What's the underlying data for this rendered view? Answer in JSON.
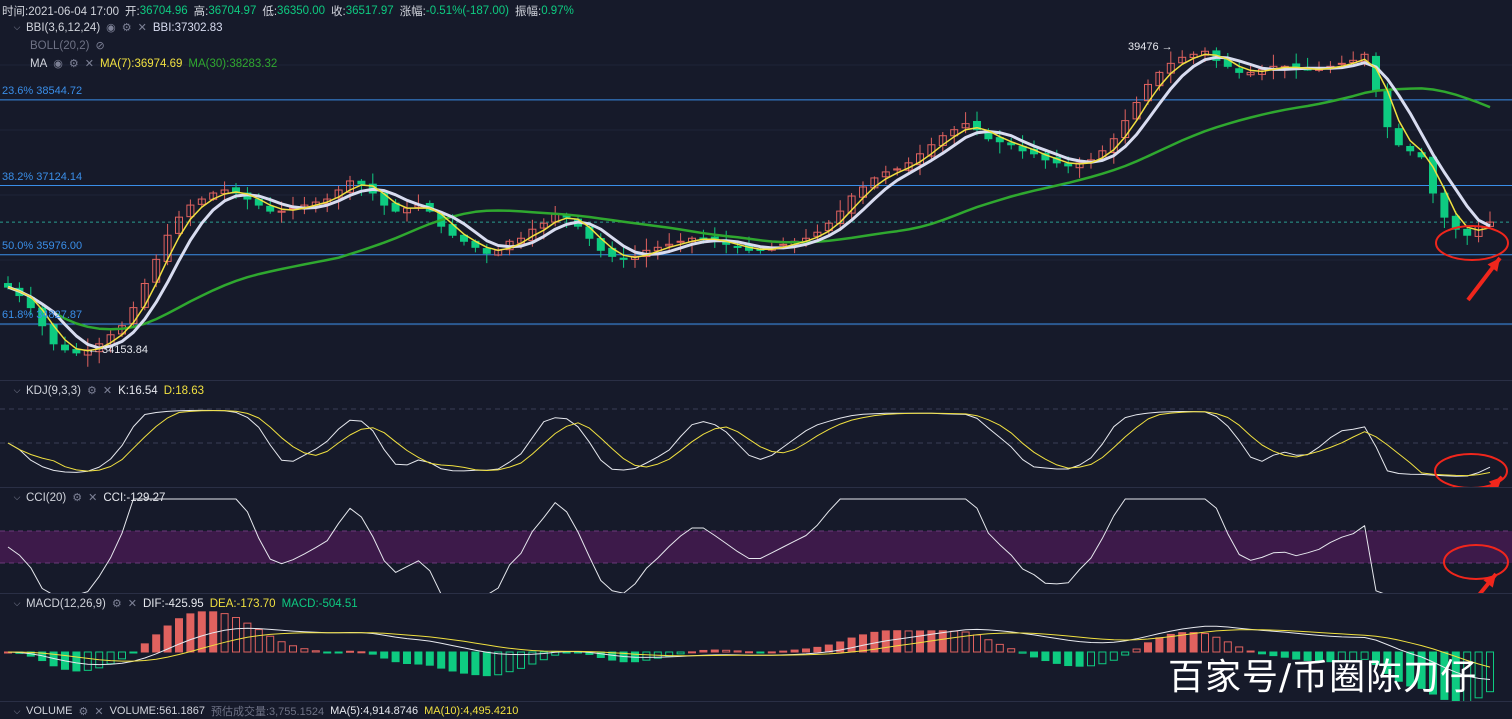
{
  "header": {
    "time": "时间:2021-06-04 17:00",
    "open_label": "开:",
    "open": "36704.96",
    "high_label": "高:",
    "high": "36704.97",
    "low_label": "低:",
    "low": "36350.00",
    "close_label": "收:",
    "close": "36517.97",
    "change_label": "涨幅:",
    "change": "-0.51%(-187.00)",
    "amp_label": "振幅:",
    "amp": "0.97%"
  },
  "indicators": {
    "bbi_name": "BBI(3,6,12,24)",
    "bbi_value": "BBI:37302.83",
    "boll_name": "BOLL(20,2)",
    "ma_name": "MA",
    "ma7": "MA(7):36974.69",
    "ma30": "MA(30):38283.32"
  },
  "fib_levels": [
    {
      "label": "23.6% 38544.72",
      "price": 38544.72
    },
    {
      "label": "38.2% 37124.14",
      "price": 37124.14
    },
    {
      "label": "50.0% 35976.00",
      "price": 35976.0
    },
    {
      "label": "61.8% 34827.87",
      "price": 34827.87
    }
  ],
  "annotations": {
    "high": "39476 →",
    "low": "← 34153.84"
  },
  "kdj": {
    "name": "KDJ(9,3,3)",
    "k": "K:16.54",
    "d": "D:18.63"
  },
  "cci": {
    "name": "CCI(20)",
    "value": "CCI:-129.27"
  },
  "macd": {
    "name": "MACD(12,26,9)",
    "dif": "DIF:-425.95",
    "dea": "DEA:-173.70",
    "macd": "MACD:-504.51"
  },
  "volume": {
    "name": "VOLUME",
    "value": "VOLUME:561.1867",
    "forecast": "预估成交量:3,755.1524",
    "ma5": "MA(5):4,914.8746",
    "ma10": "MA(10):4,495.4210"
  },
  "watermark": "百家号/币圈陈刀仔",
  "colors": {
    "up": "#e0625f",
    "down": "#0ecb81",
    "ma7": "#f0e040",
    "ma30": "#2fa82f",
    "bbi": "#d8dcf0",
    "fib": "#3a8ee8",
    "callout": "#f0261c"
  },
  "chart_data": {
    "type": "candlestick",
    "y_range": [
      33900,
      40200
    ],
    "candles_close": [
      35440,
      35300,
      35100,
      34800,
      34500,
      34400,
      34350,
      34400,
      34500,
      34650,
      34800,
      35100,
      35500,
      35900,
      36300,
      36600,
      36800,
      36900,
      37000,
      37050,
      37000,
      36900,
      36800,
      36700,
      36700,
      36750,
      36800,
      36850,
      36900,
      37050,
      37200,
      37150,
      37000,
      36800,
      36700,
      36750,
      36800,
      36700,
      36450,
      36300,
      36200,
      36100,
      36000,
      36050,
      36200,
      36250,
      36400,
      36500,
      36650,
      36600,
      36450,
      36250,
      36050,
      35950,
      35900,
      35950,
      36050,
      36100,
      36150,
      36200,
      36250,
      36250,
      36200,
      36150,
      36100,
      36050,
      36050,
      36100,
      36150,
      36200,
      36250,
      36350,
      36500,
      36700,
      36950,
      37100,
      37250,
      37350,
      37400,
      37500,
      37650,
      37800,
      37950,
      38050,
      38150,
      38050,
      37900,
      37850,
      37800,
      37700,
      37650,
      37550,
      37500,
      37450,
      37500,
      37550,
      37700,
      37900,
      38200,
      38500,
      38800,
      39000,
      39150,
      39250,
      39300,
      39350,
      39200,
      39100,
      39000,
      39000,
      39050,
      39100,
      39100,
      39050,
      39050,
      39050,
      39100,
      39150,
      39200,
      39300,
      38700,
      38100,
      37800,
      37700,
      37600,
      37000,
      36600,
      36400,
      36300,
      36450,
      36518
    ]
  }
}
